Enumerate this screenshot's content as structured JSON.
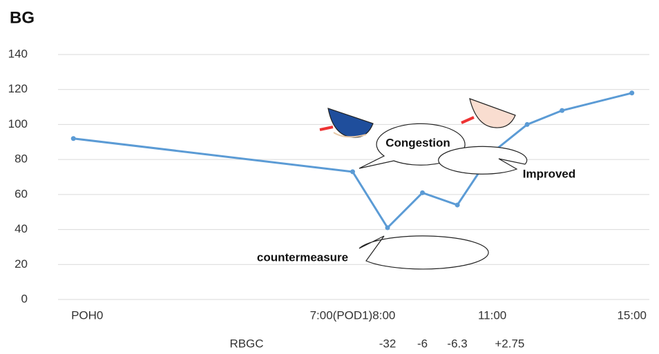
{
  "chart_data": {
    "type": "line",
    "title": "BG",
    "x": [
      0,
      8,
      9,
      10,
      11,
      12,
      13,
      14,
      16
    ],
    "series": [
      {
        "color": "#5b9bd5",
        "values": [
          92,
          73,
          41,
          61,
          54,
          84,
          100,
          108,
          118
        ]
      }
    ],
    "xlim": [
      -0.44,
      16.5
    ],
    "xticks": [
      {
        "value": 0,
        "label": "POH0"
      },
      {
        "value": 8,
        "label": "7:00(POD1)8:00"
      },
      {
        "value": 12,
        "label": "11:00"
      },
      {
        "value": 16,
        "label": "15:00"
      }
    ],
    "ylim": [
      0,
      140
    ],
    "yticks": [
      0,
      20,
      40,
      60,
      80,
      100,
      120,
      140
    ],
    "grid": true,
    "annotations": [
      "Congestion",
      "countermeasure",
      "Improved"
    ],
    "rbgc": {
      "label": "RBGC",
      "x": [
        9,
        10,
        11,
        12.5
      ],
      "values": [
        -32,
        -6,
        -6.3,
        2.75
      ],
      "value_labels": [
        "-32",
        "-6",
        "-6.3",
        "+2.75"
      ]
    }
  }
}
